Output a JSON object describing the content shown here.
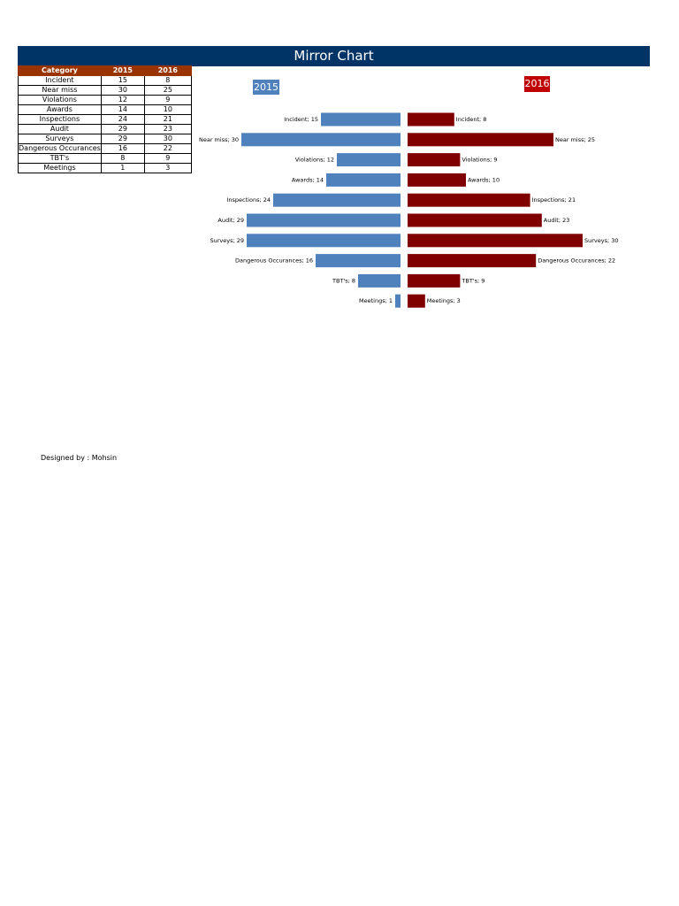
{
  "header": {
    "title": "Mirror Chart"
  },
  "table": {
    "columns": [
      "Category",
      "2015",
      "2016"
    ],
    "rows": [
      [
        "Incident",
        "15",
        "8"
      ],
      [
        "Near miss",
        "30",
        "25"
      ],
      [
        "Violations",
        "12",
        "9"
      ],
      [
        "Awards",
        "14",
        "10"
      ],
      [
        "Inspections",
        "24",
        "21"
      ],
      [
        "Audit",
        "29",
        "23"
      ],
      [
        "Surveys",
        "29",
        "30"
      ],
      [
        "Dangerous Occurances",
        "16",
        "22"
      ],
      [
        "TBT's",
        "8",
        "9"
      ],
      [
        "Meetings",
        "1",
        "3"
      ]
    ]
  },
  "chart_data": {
    "type": "mirror_bar",
    "categories": [
      "Incident",
      "Near miss",
      "Violations",
      "Awards",
      "Inspections",
      "Audit",
      "Surveys",
      "Dangerous Occurances",
      "TBT's",
      "Meetings"
    ],
    "series": [
      {
        "name": "2015",
        "color": "#4f81bd",
        "values": [
          15,
          30,
          12,
          14,
          24,
          29,
          29,
          16,
          8,
          1
        ],
        "value_labels": [
          "Incident; 15",
          "Near miss; 30",
          "Violations; 12",
          "Awards; 14",
          "Inspections; 24",
          "Audit; 29",
          "Surveys; 29",
          "Dangerous Occurances; 16",
          "TBT's; 8",
          "Meetings; 1"
        ]
      },
      {
        "name": "2016",
        "color": "#800000",
        "values": [
          8,
          25,
          9,
          10,
          21,
          23,
          30,
          22,
          9,
          3
        ],
        "value_labels": [
          "Incident; 8",
          "Near miss; 25",
          "Violations; 9",
          "Awards; 10",
          "Inspections; 21",
          "Audit; 23",
          "Surveys; 30",
          "Dangerous Occurances; 22",
          "TBT's; 9",
          "Meetings; 3"
        ]
      }
    ]
  },
  "footer": "Designed by : Mohsin"
}
